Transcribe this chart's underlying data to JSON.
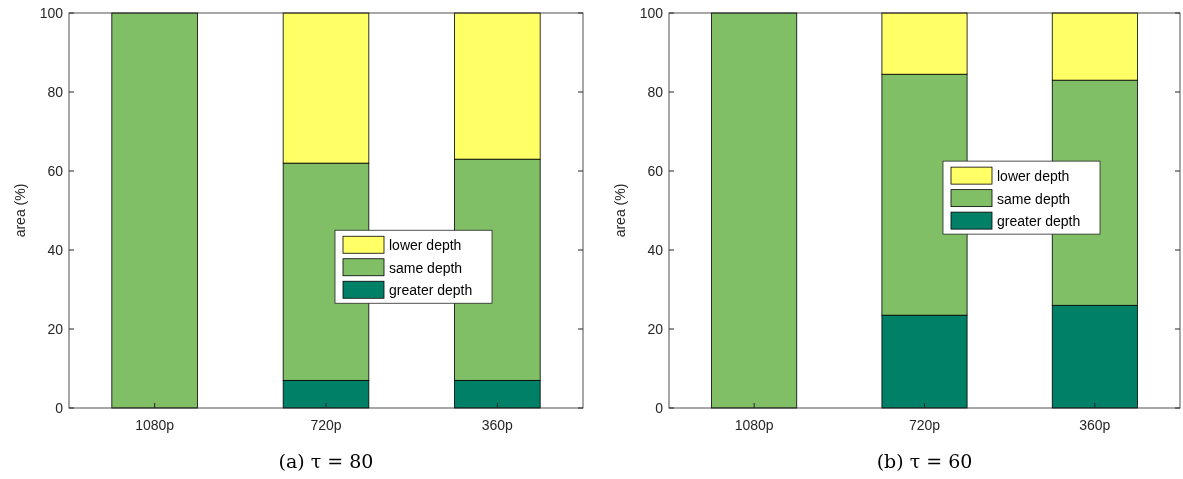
{
  "chart_data": [
    {
      "type": "bar",
      "title": "(a) τ = 80",
      "ylabel": "area (%)",
      "categories": [
        "1080p",
        "720p",
        "360p"
      ],
      "stacked": true,
      "legend": "bottom right",
      "ylim": [
        0,
        100
      ],
      "yticks": [
        0,
        20,
        40,
        60,
        80,
        100
      ],
      "series": [
        {
          "name": "greater depth",
          "color": "#008066",
          "values": [
            0,
            7,
            7
          ]
        },
        {
          "name": "same depth",
          "color": "#80bf66",
          "values": [
            100,
            55,
            56
          ]
        },
        {
          "name": "lower depth",
          "color": "#ffff66",
          "values": [
            0,
            38,
            37
          ]
        }
      ]
    },
    {
      "type": "bar",
      "title": "(b) τ = 60",
      "ylabel": "area (%)",
      "categories": [
        "1080p",
        "720p",
        "360p"
      ],
      "stacked": true,
      "legend": "right",
      "ylim": [
        0,
        100
      ],
      "yticks": [
        0,
        20,
        40,
        60,
        80,
        100
      ],
      "series": [
        {
          "name": "greater depth",
          "color": "#008066",
          "values": [
            0,
            23.5,
            26
          ]
        },
        {
          "name": "same depth",
          "color": "#80bf66",
          "values": [
            100,
            61,
            57
          ]
        },
        {
          "name": "lower depth",
          "color": "#ffff66",
          "values": [
            0,
            15.5,
            17
          ]
        }
      ]
    }
  ]
}
